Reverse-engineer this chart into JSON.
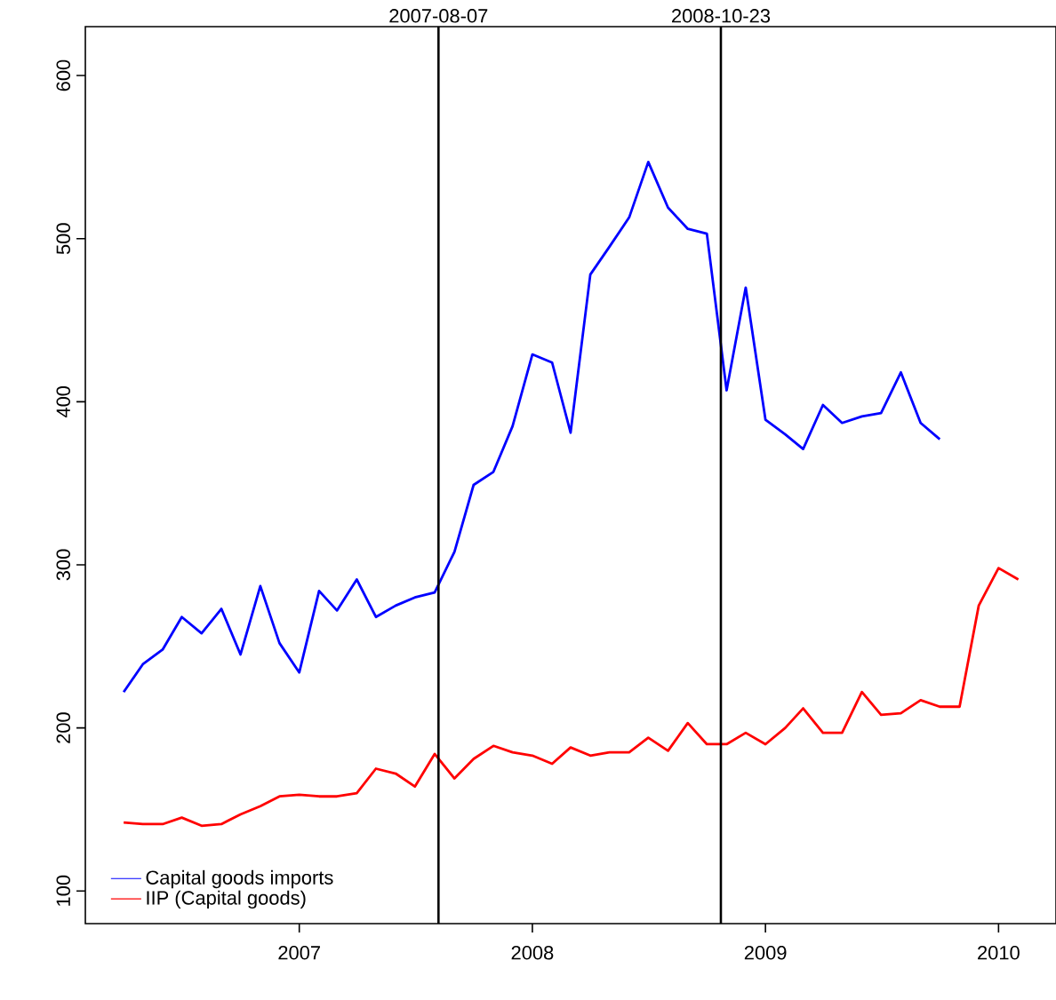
{
  "chart_data": {
    "type": "line",
    "xlim": [
      "2006-01-31",
      "2010-04-01"
    ],
    "ylim": [
      80,
      630
    ],
    "xticks": [
      "2007",
      "2008",
      "2009",
      "2010"
    ],
    "yticks": [
      100,
      200,
      300,
      400,
      500,
      600
    ],
    "grid": false,
    "legend": "bottom left",
    "line_style": "solid",
    "marker": "none",
    "ref_lines": [
      {
        "axis": "x",
        "value": "2007-08-07",
        "label": "2007-08-07",
        "color": "#000000"
      },
      {
        "axis": "x",
        "value": "2008-10-23",
        "label": "2008-10-23",
        "color": "#000000"
      }
    ],
    "series": [
      {
        "name": "Capital goods imports",
        "color": "#0000ff",
        "x": [
          "2006-04",
          "2006-05",
          "2006-06",
          "2006-07",
          "2006-08",
          "2006-09",
          "2006-10",
          "2006-11",
          "2006-12",
          "2007-01",
          "2007-02",
          "2007-03",
          "2007-04",
          "2007-05",
          "2007-06",
          "2007-07",
          "2007-08",
          "2007-09",
          "2007-10",
          "2007-11",
          "2007-12",
          "2008-01",
          "2008-02",
          "2008-03",
          "2008-04",
          "2008-05",
          "2008-06",
          "2008-07",
          "2008-08",
          "2008-09",
          "2008-10",
          "2008-11",
          "2008-12",
          "2009-01",
          "2009-02",
          "2009-03",
          "2009-04",
          "2009-05",
          "2009-06",
          "2009-07",
          "2009-08",
          "2009-09",
          "2009-10"
        ],
        "values": [
          222,
          239,
          248,
          268,
          258,
          273,
          245,
          287,
          252,
          234,
          284,
          272,
          291,
          268,
          275,
          280,
          283,
          308,
          349,
          357,
          385,
          429,
          424,
          381,
          478,
          495,
          513,
          547,
          519,
          506,
          503,
          407,
          470,
          389,
          380,
          371,
          398,
          387,
          391,
          393,
          418,
          387,
          377
        ]
      },
      {
        "name": "IIP (Capital goods)",
        "color": "#ff0000",
        "x": [
          "2006-04",
          "2006-05",
          "2006-06",
          "2006-07",
          "2006-08",
          "2006-09",
          "2006-10",
          "2006-11",
          "2006-12",
          "2007-01",
          "2007-02",
          "2007-03",
          "2007-04",
          "2007-05",
          "2007-06",
          "2007-07",
          "2007-08",
          "2007-09",
          "2007-10",
          "2007-11",
          "2007-12",
          "2008-01",
          "2008-02",
          "2008-03",
          "2008-04",
          "2008-05",
          "2008-06",
          "2008-07",
          "2008-08",
          "2008-09",
          "2008-10",
          "2008-11",
          "2008-12",
          "2009-01",
          "2009-02",
          "2009-03",
          "2009-04",
          "2009-05",
          "2009-06",
          "2009-07",
          "2009-08",
          "2009-09",
          "2009-10",
          "2009-11",
          "2009-12",
          "2010-01",
          "2010-02"
        ],
        "values": [
          142,
          141,
          141,
          145,
          140,
          141,
          147,
          152,
          158,
          159,
          158,
          158,
          160,
          175,
          172,
          164,
          184,
          169,
          181,
          189,
          185,
          183,
          178,
          188,
          183,
          185,
          185,
          194,
          186,
          203,
          190,
          190,
          197,
          190,
          200,
          212,
          197,
          197,
          222,
          208,
          209,
          217,
          213,
          213,
          275,
          298,
          291
        ]
      }
    ]
  }
}
